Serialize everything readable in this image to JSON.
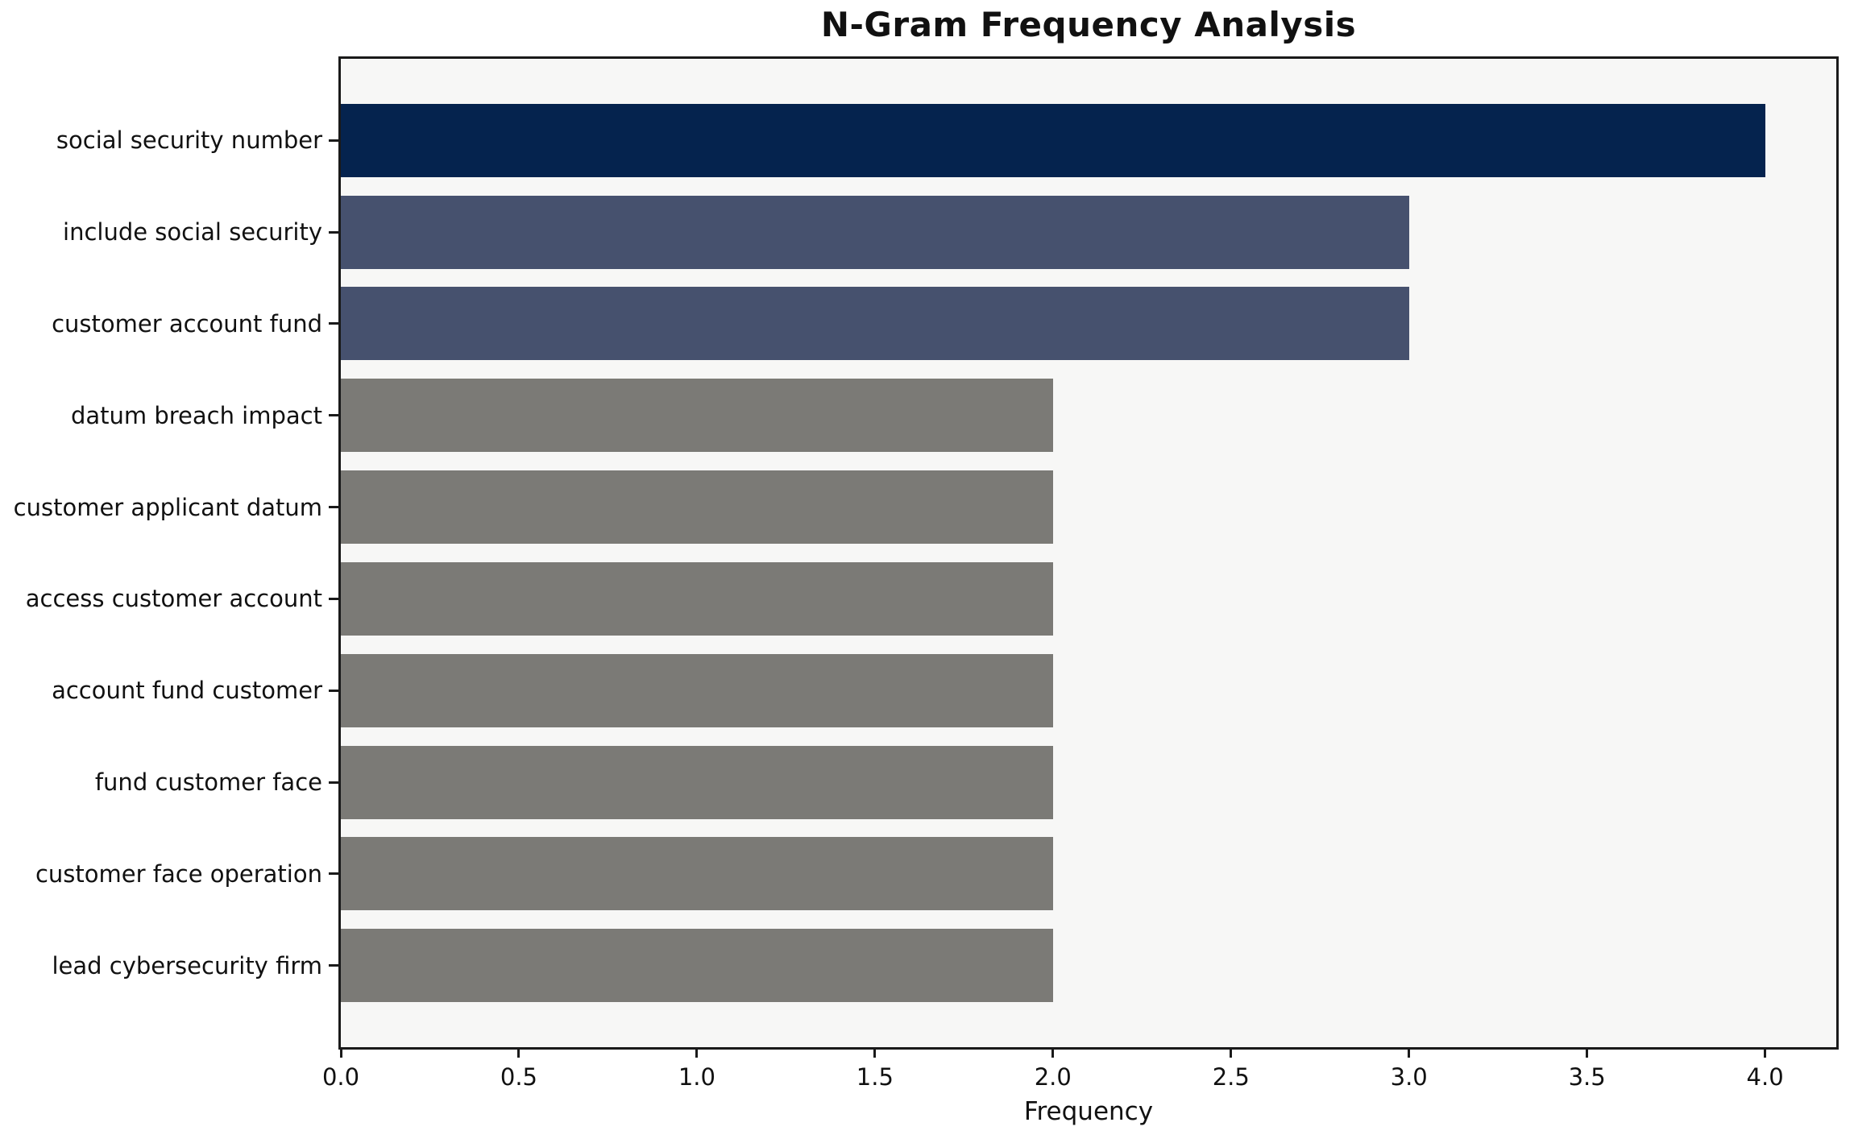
{
  "chart_data": {
    "type": "bar",
    "orientation": "horizontal",
    "title": "N-Gram Frequency Analysis",
    "xlabel": "Frequency",
    "ylabel": "",
    "categories": [
      "social security number",
      "include social security",
      "customer account fund",
      "datum breach impact",
      "customer applicant datum",
      "access customer account",
      "account fund customer",
      "fund customer face",
      "customer face operation",
      "lead cybersecurity firm"
    ],
    "values": [
      4,
      3,
      3,
      2,
      2,
      2,
      2,
      2,
      2,
      2
    ],
    "bar_colors": [
      "#05234e",
      "#46516e",
      "#46516e",
      "#7b7a76",
      "#7b7a76",
      "#7b7a76",
      "#7b7a76",
      "#7b7a76",
      "#7b7a76",
      "#7b7a76"
    ],
    "xlim": [
      0,
      4.2
    ],
    "x_tick_values": [
      0,
      0.5,
      1.0,
      1.5,
      2.0,
      2.5,
      3.0,
      3.5,
      4.0
    ],
    "x_tick_labels": [
      "0.0",
      "0.5",
      "1.0",
      "1.5",
      "2.0",
      "2.5",
      "3.0",
      "3.5",
      "4.0"
    ],
    "grid": false,
    "legend": "none",
    "plot_background": "#f7f7f6",
    "figure_background": "#ffffff",
    "spine_color": "#1a1a1a",
    "bar_height_fraction": 0.8
  }
}
